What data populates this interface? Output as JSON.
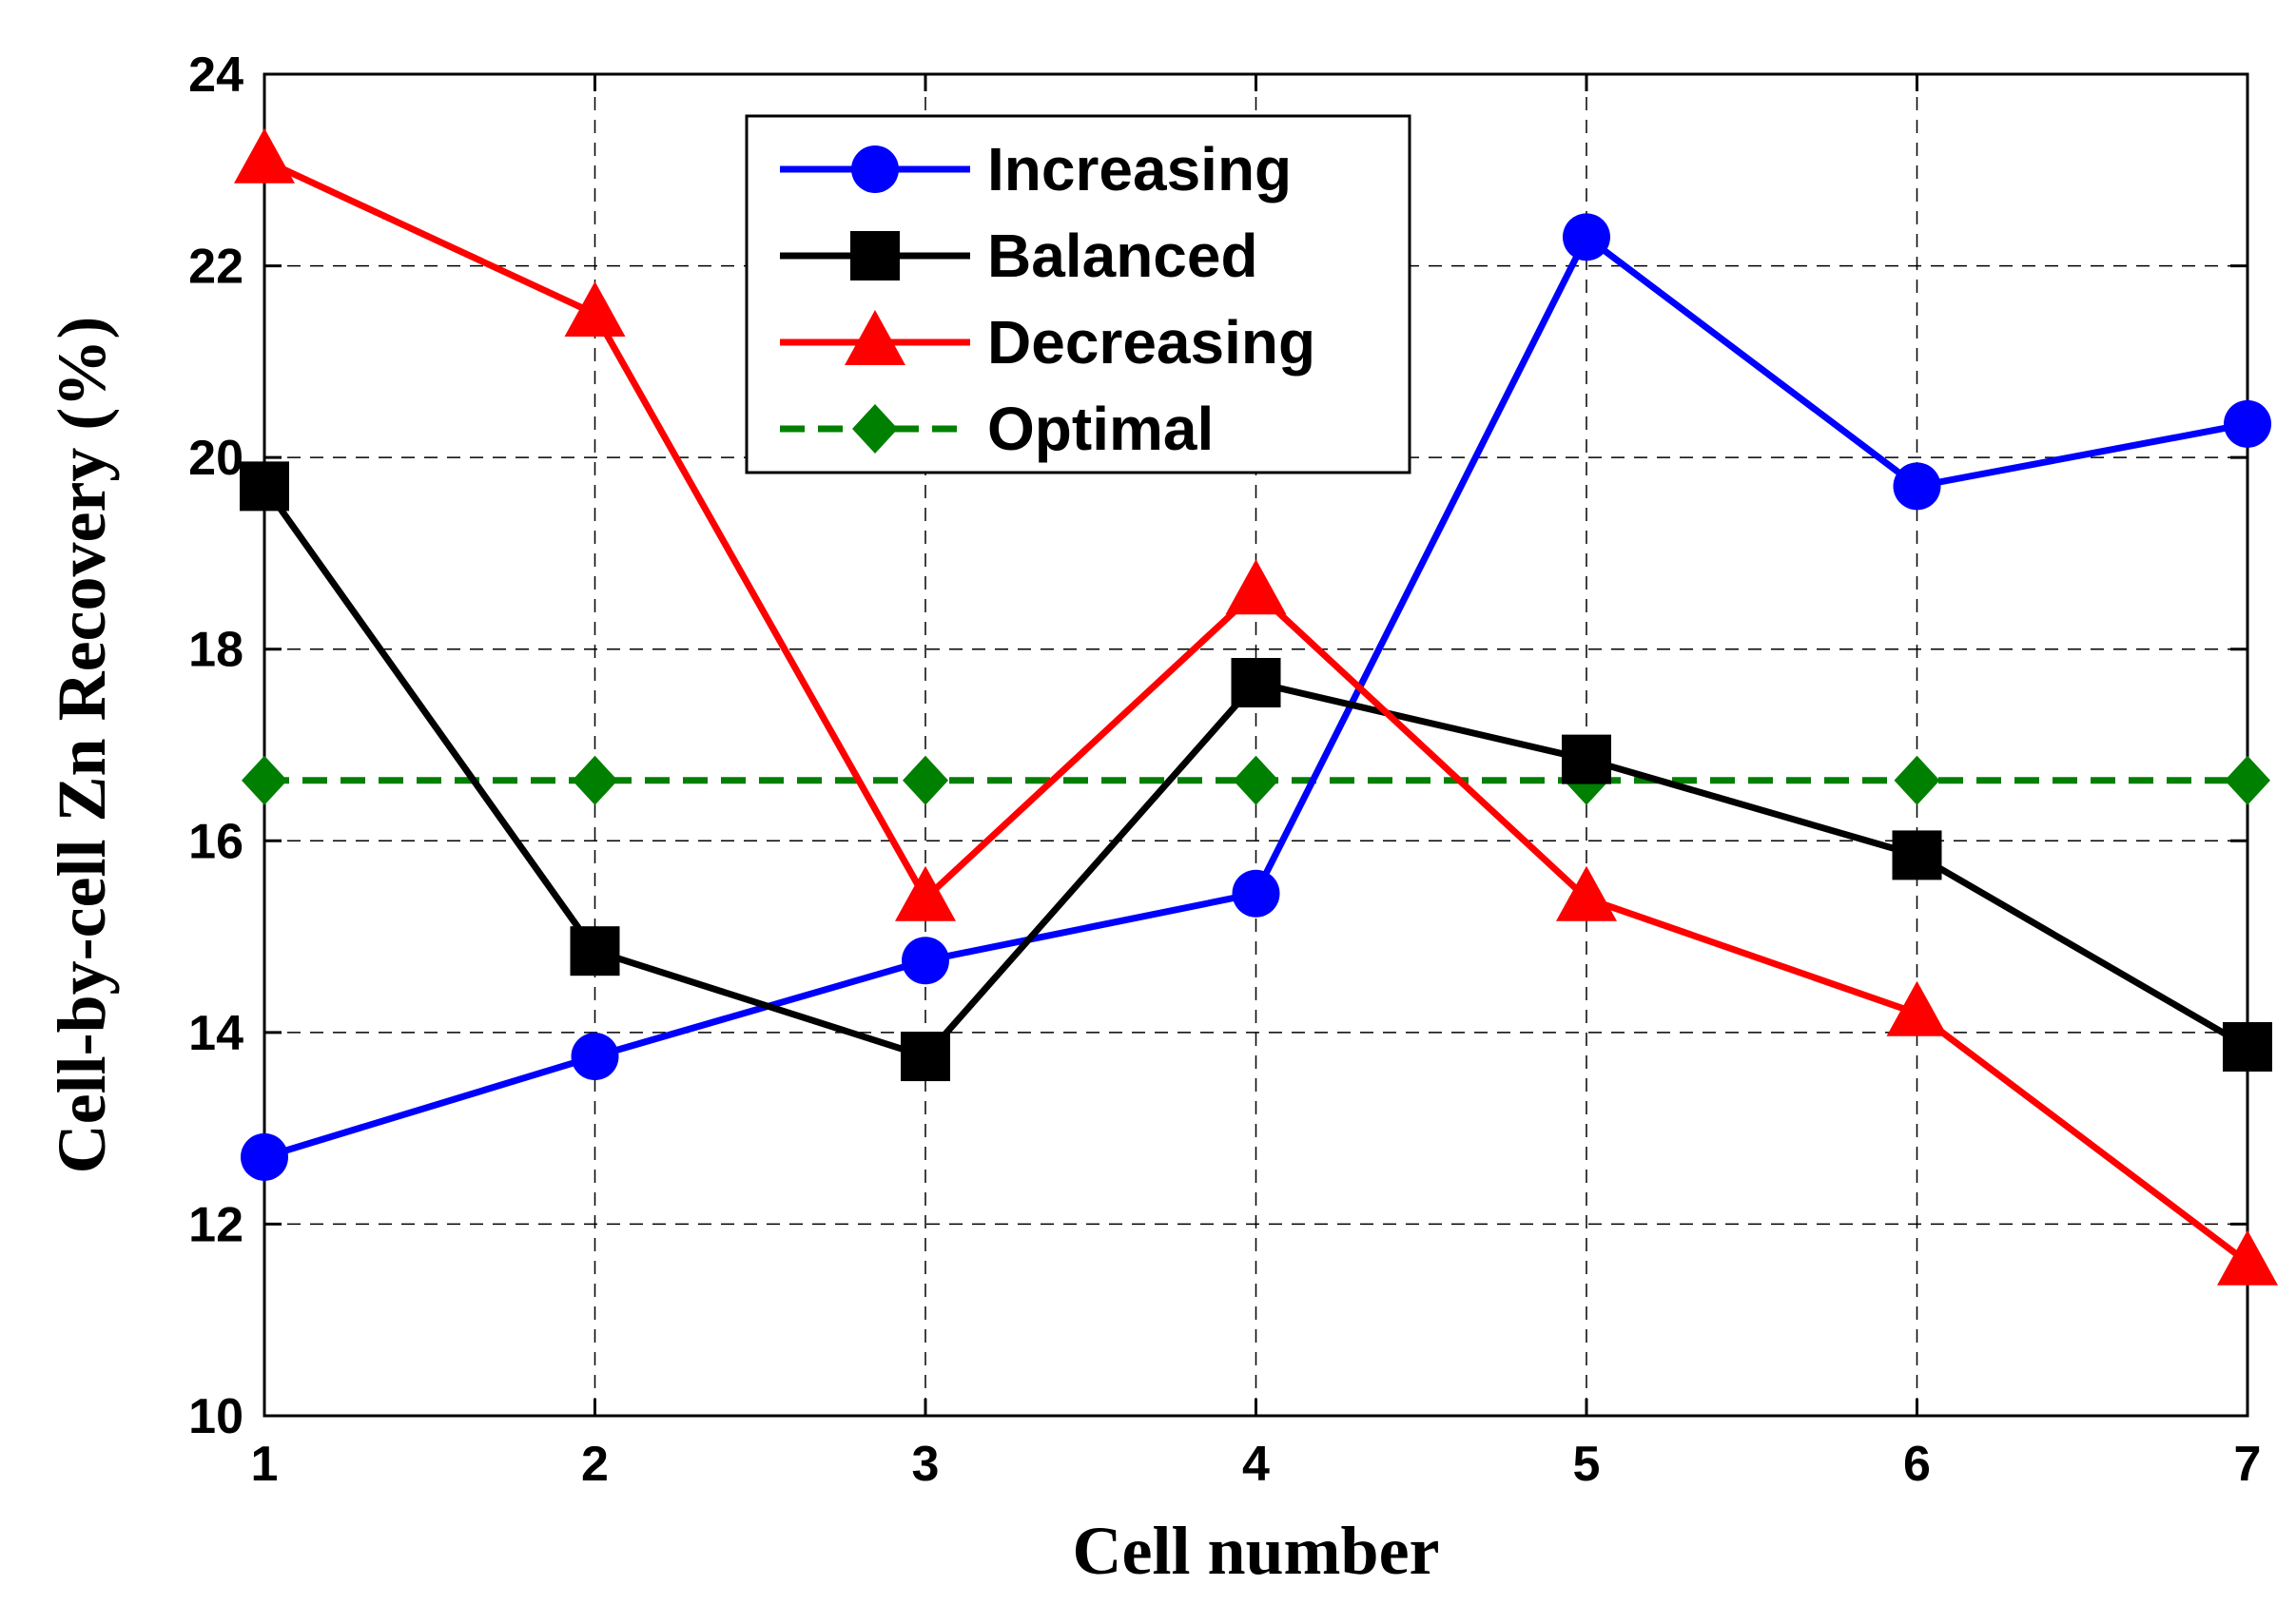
{
  "chart_data": {
    "type": "line",
    "title": "",
    "xlabel": "Cell number",
    "ylabel": "Cell-by-cell Zn Recovery (%)",
    "x": [
      1,
      2,
      3,
      4,
      5,
      6,
      7
    ],
    "xlim": [
      1,
      7
    ],
    "ylim": [
      10,
      24
    ],
    "xticks": [
      "1",
      "2",
      "3",
      "4",
      "5",
      "6",
      "7"
    ],
    "yticks": [
      "10",
      "12",
      "14",
      "16",
      "18",
      "20",
      "22",
      "24"
    ],
    "grid": true,
    "legend_position": "top-center",
    "series": [
      {
        "name": "Increasing",
        "color": "#0000ff",
        "marker": "circle",
        "dashed": false,
        "values": [
          12.7,
          13.75,
          14.75,
          15.45,
          22.3,
          19.7,
          20.35
        ]
      },
      {
        "name": "Balanced",
        "color": "#000000",
        "marker": "square",
        "dashed": false,
        "values": [
          19.7,
          14.85,
          13.75,
          17.65,
          16.85,
          15.85,
          13.85
        ]
      },
      {
        "name": "Decreasing",
        "color": "#ff0000",
        "marker": "triangle",
        "dashed": false,
        "values": [
          23.1,
          21.5,
          15.4,
          18.6,
          15.4,
          14.2,
          11.6
        ]
      },
      {
        "name": "Optimal",
        "color": "#008000",
        "marker": "diamond",
        "dashed": true,
        "values": [
          16.63,
          16.63,
          16.63,
          16.63,
          16.63,
          16.63,
          16.63
        ]
      }
    ]
  }
}
